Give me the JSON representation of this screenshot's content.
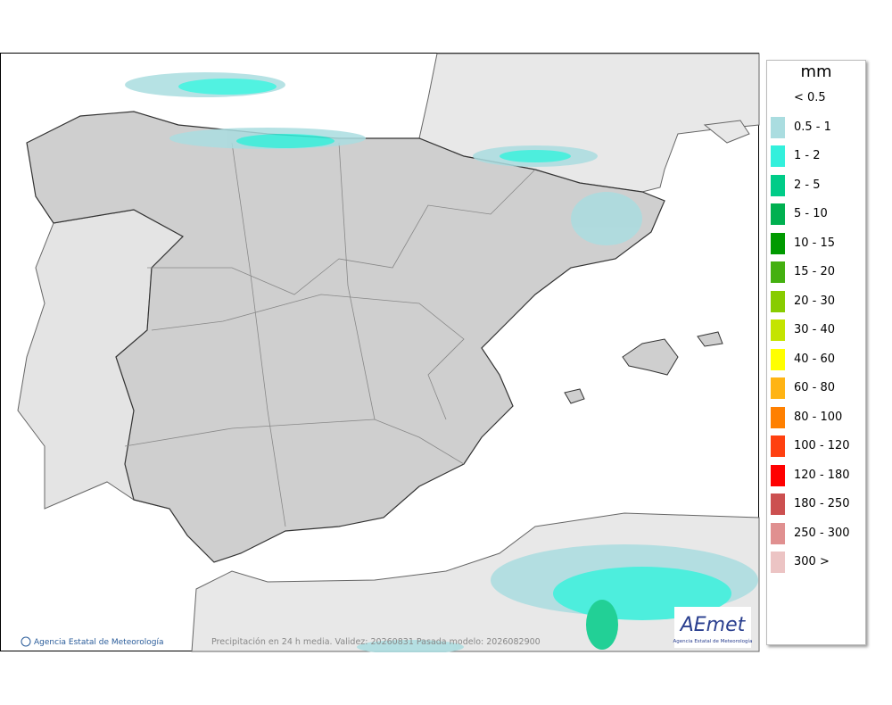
{
  "map": {
    "credit": "Agencia Estatal de Meteorología",
    "caption": "Precipitación en 24 h media. Validez: 20260831 Pasada modelo: 2026082900",
    "logo": {
      "name": "AEmet",
      "subtitle": "Agencia Estatal de Meteorología"
    }
  },
  "legend": {
    "title": "mm",
    "items": [
      {
        "label": "< 0.5"
      },
      {
        "label": "0.5 - 1",
        "color": "#aadde0"
      },
      {
        "label": "1 - 2",
        "color": "#33f0dc"
      },
      {
        "label": "2 - 5",
        "color": "#00cc88"
      },
      {
        "label": "5 - 10",
        "color": "#00b050"
      },
      {
        "label": "10 - 15",
        "color": "#009a00"
      },
      {
        "label": "15 - 20",
        "color": "#44b010"
      },
      {
        "label": "20 - 30",
        "color": "#88cc00"
      },
      {
        "label": "30 - 40",
        "color": "#c4e400"
      },
      {
        "label": "40 - 60",
        "color": "#ffff00"
      },
      {
        "label": "60 - 80",
        "color": "#ffb414"
      },
      {
        "label": "80 - 100",
        "color": "#ff8000"
      },
      {
        "label": "100 - 120",
        "color": "#ff4010"
      },
      {
        "label": "120 - 180",
        "color": "#ff0000"
      },
      {
        "label": "180 - 250",
        "color": "#cc5050"
      },
      {
        "label": "250 - 300",
        "color": "#e09090"
      },
      {
        "label": "300 >",
        "color": "#ecc4c4"
      }
    ]
  }
}
